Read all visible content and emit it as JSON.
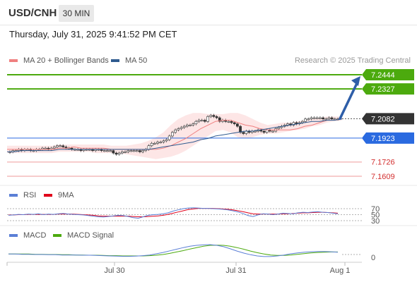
{
  "header": {
    "symbol": "USD/CNH",
    "timeframe": "30 MIN",
    "datetime": "Thursday, July 31, 2025 9:41:52 PM CET"
  },
  "chart_data": [
    {
      "type": "candlestick",
      "legend": [
        {
          "name": "MA 20 + Bollinger Bands",
          "color": "#f08080"
        },
        {
          "name": "MA 50",
          "color": "#2f5b8f"
        }
      ],
      "credit": "Research © 2025 Trading Central",
      "ylim": [
        7.153,
        7.256
      ],
      "price_levels": [
        {
          "value": 7.2444,
          "label": "7.2444",
          "color": "#4caa0e",
          "kind": "target"
        },
        {
          "value": 7.2327,
          "label": "7.2327",
          "color": "#4caa0e",
          "kind": "target"
        },
        {
          "value": 7.2082,
          "label": "7.2082",
          "color": "#333333",
          "kind": "current"
        },
        {
          "value": 7.1923,
          "label": "7.1923",
          "color": "#2a6ae0",
          "kind": "pivot"
        },
        {
          "value": 7.1726,
          "label": "7.1726",
          "color": "#ef9a9a",
          "kind": "support"
        },
        {
          "value": 7.1609,
          "label": "7.1609",
          "color": "#ef9a9a",
          "kind": "support"
        }
      ],
      "close": [
        7.181,
        7.182,
        7.182,
        7.183,
        7.182,
        7.183,
        7.183,
        7.182,
        7.182,
        7.183,
        7.183,
        7.184,
        7.184,
        7.183,
        7.184,
        7.185,
        7.186,
        7.186,
        7.185,
        7.184,
        7.184,
        7.183,
        7.183,
        7.183,
        7.182,
        7.183,
        7.183,
        7.183,
        7.182,
        7.183,
        7.183,
        7.182,
        7.182,
        7.182,
        7.182,
        7.18,
        7.179,
        7.18,
        7.181,
        7.181,
        7.182,
        7.182,
        7.182,
        7.182,
        7.181,
        7.182,
        7.183,
        7.186,
        7.188,
        7.188,
        7.189,
        7.189,
        7.19,
        7.191,
        7.194,
        7.197,
        7.199,
        7.2,
        7.201,
        7.202,
        7.203,
        7.203,
        7.204,
        7.206,
        7.207,
        7.207,
        7.206,
        7.21,
        7.211,
        7.21,
        7.209,
        7.206,
        7.207,
        7.206,
        7.206,
        7.205,
        7.204,
        7.202,
        7.197,
        7.196,
        7.198,
        7.197,
        7.198,
        7.198,
        7.199,
        7.198,
        7.197,
        7.199,
        7.198,
        7.198,
        7.2,
        7.201,
        7.202,
        7.203,
        7.204,
        7.203,
        7.205,
        7.204,
        7.205,
        7.206,
        7.208,
        7.208,
        7.209,
        7.209,
        7.209,
        7.209,
        7.208,
        7.208,
        7.209,
        7.208,
        7.208,
        7.208
      ],
      "ma20": [
        7.183,
        7.183,
        7.183,
        7.183,
        7.183,
        7.183,
        7.183,
        7.184,
        7.184,
        7.185,
        7.184,
        7.184,
        7.184,
        7.184,
        7.183,
        7.183,
        7.183,
        7.183,
        7.183,
        7.183,
        7.183,
        7.184,
        7.186,
        7.189,
        7.192,
        7.196,
        7.2,
        7.203,
        7.206,
        7.207,
        7.207,
        7.205,
        7.203,
        7.202,
        7.2,
        7.199,
        7.199,
        7.199,
        7.199,
        7.2,
        7.202,
        7.203,
        7.205,
        7.207,
        7.207,
        7.208
      ],
      "ma50": [
        7.181,
        7.181,
        7.182,
        7.182,
        7.182,
        7.182,
        7.182,
        7.183,
        7.183,
        7.183,
        7.183,
        7.183,
        7.183,
        7.183,
        7.183,
        7.183,
        7.183,
        7.183,
        7.183,
        7.183,
        7.184,
        7.185,
        7.186,
        7.187,
        7.188,
        7.189,
        7.191,
        7.192,
        7.194,
        7.195,
        7.196,
        7.197,
        7.198,
        7.198,
        7.199,
        7.2,
        7.201,
        7.202,
        7.203,
        7.204,
        7.205,
        7.206,
        7.206,
        7.207,
        7.207,
        7.208
      ],
      "bb_upper": [
        7.186,
        7.186,
        7.186,
        7.186,
        7.186,
        7.186,
        7.186,
        7.187,
        7.187,
        7.187,
        7.187,
        7.187,
        7.187,
        7.187,
        7.186,
        7.186,
        7.186,
        7.187,
        7.188,
        7.19,
        7.193,
        7.197,
        7.203,
        7.208,
        7.211,
        7.213,
        7.213,
        7.212,
        7.212,
        7.212,
        7.213,
        7.213,
        7.211,
        7.208,
        7.205,
        7.203,
        7.204,
        7.205,
        7.205,
        7.206,
        7.207,
        7.208,
        7.209,
        7.21,
        7.21,
        7.21
      ],
      "bb_lower": [
        7.18,
        7.18,
        7.18,
        7.18,
        7.18,
        7.18,
        7.18,
        7.181,
        7.181,
        7.181,
        7.181,
        7.181,
        7.18,
        7.18,
        7.18,
        7.18,
        7.179,
        7.178,
        7.177,
        7.176,
        7.175,
        7.176,
        7.177,
        7.179,
        7.182,
        7.186,
        7.19,
        7.194,
        7.198,
        7.199,
        7.197,
        7.193,
        7.192,
        7.193,
        7.195,
        7.196,
        7.196,
        7.197,
        7.198,
        7.199,
        7.2,
        7.202,
        7.203,
        7.205,
        7.206,
        7.207
      ],
      "forecast_arrow": {
        "from": 7.2082,
        "to": 7.2444
      }
    },
    {
      "type": "line",
      "title": "RSI",
      "series": [
        {
          "name": "RSI",
          "color": "#5b7fd6"
        },
        {
          "name": "9MA",
          "color": "#e0001b"
        }
      ],
      "ylim": [
        25,
        80
      ],
      "levels": [
        70,
        50,
        30
      ],
      "tick_labels": [
        "70",
        "50",
        "30"
      ],
      "rsi": [
        48,
        49,
        51,
        50,
        52,
        51,
        53,
        50,
        52,
        51,
        53,
        54,
        52,
        51,
        50,
        49,
        47,
        45,
        43,
        42,
        44,
        46,
        48,
        47,
        44,
        40,
        38,
        43,
        48,
        50,
        51,
        53,
        56,
        62,
        66,
        70,
        72,
        73,
        72,
        71,
        71,
        70,
        69,
        68,
        66,
        63,
        59,
        54,
        47,
        44,
        49,
        53,
        52,
        50,
        52,
        55,
        54,
        53,
        56,
        58,
        57,
        59,
        60,
        58,
        57,
        55,
        53
      ],
      "ma9": [
        49,
        49,
        50,
        50,
        51,
        51,
        51,
        51,
        51,
        51,
        52,
        52,
        52,
        52,
        51,
        50,
        49,
        48,
        46,
        45,
        45,
        45,
        45,
        45,
        45,
        44,
        43,
        43,
        44,
        45,
        46,
        48,
        51,
        55,
        59,
        63,
        67,
        69,
        71,
        71,
        71,
        71,
        70,
        69,
        68,
        66,
        63,
        60,
        56,
        53,
        52,
        52,
        52,
        52,
        52,
        53,
        53,
        54,
        55,
        56,
        56,
        57,
        58,
        58,
        57,
        56,
        55
      ]
    },
    {
      "type": "line",
      "title": "MACD",
      "series": [
        {
          "name": "MACD",
          "color": "#5b7fd6"
        },
        {
          "name": "MACD Signal",
          "color": "#4caa0e"
        }
      ],
      "zero_label": "0",
      "x_tick_labels": [
        "Jul 30",
        "Jul 31",
        "Aug 1"
      ],
      "macd": [
        0.2,
        0.2,
        0.1,
        0.1,
        0.0,
        0.0,
        -0.1,
        -0.1,
        -0.2,
        -0.2,
        -0.2,
        -0.3,
        -0.3,
        -0.4,
        -0.5,
        -0.6,
        -0.7,
        -0.8,
        -0.8,
        -0.7,
        -0.5,
        -0.2,
        0.3,
        0.9,
        1.6,
        2.3,
        3.0,
        3.6,
        4.0,
        4.2,
        4.3,
        4.0,
        3.4,
        2.5,
        1.5,
        0.6,
        -0.1,
        -0.6,
        -0.9,
        -0.9,
        -0.6,
        -0.2,
        0.3,
        0.7,
        1.0,
        1.2,
        1.3,
        1.3,
        1.2,
        1.0
      ],
      "signal": [
        0.2,
        0.2,
        0.2,
        0.2,
        0.1,
        0.1,
        0.0,
        0.0,
        -0.1,
        -0.1,
        -0.2,
        -0.2,
        -0.3,
        -0.3,
        -0.4,
        -0.5,
        -0.5,
        -0.6,
        -0.6,
        -0.6,
        -0.6,
        -0.5,
        -0.3,
        0.0,
        0.5,
        1.1,
        1.7,
        2.4,
        3.0,
        3.6,
        4.0,
        4.1,
        4.0,
        3.6,
        3.0,
        2.3,
        1.5,
        0.8,
        0.2,
        -0.2,
        -0.4,
        -0.4,
        -0.2,
        0.1,
        0.4,
        0.7,
        0.9,
        1.0,
        1.1,
        1.1
      ]
    }
  ]
}
